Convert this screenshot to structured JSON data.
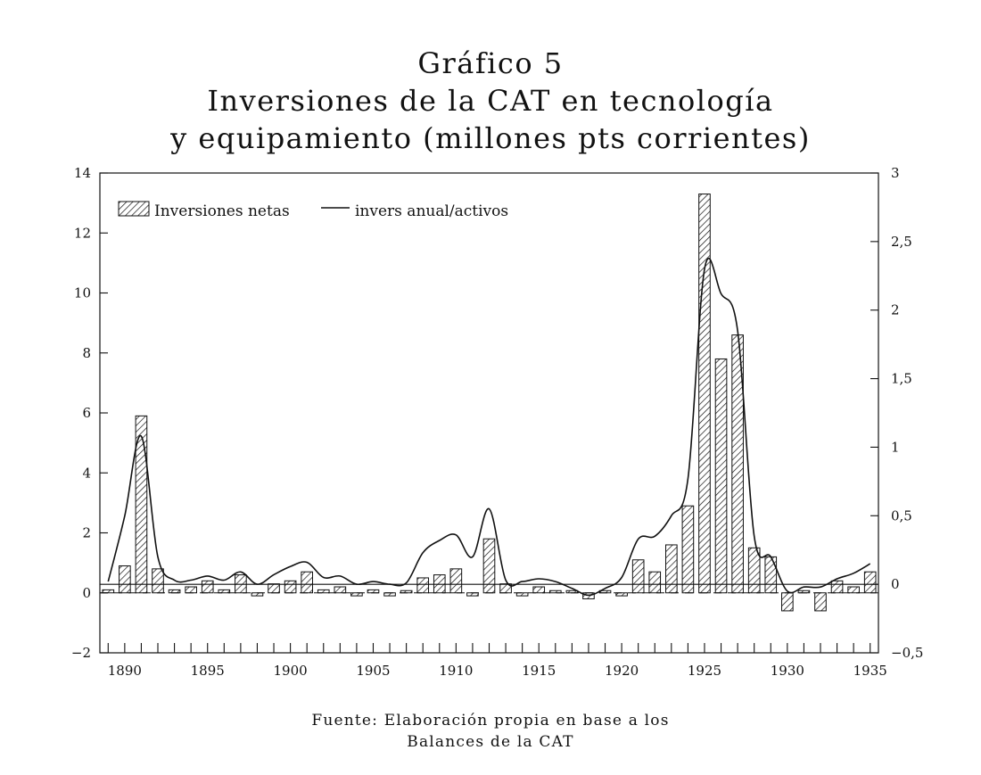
{
  "title_line1": "Gráfico 5",
  "title_line2": "Inversiones de la CAT en tecnología",
  "title_line3": "y equipamiento (millones pts corrientes)",
  "source_line1": "Fuente: Elaboración propia en base a los",
  "source_line2": "Balances de la CAT",
  "chart_data": {
    "type": "bar",
    "x": [
      1889,
      1890,
      1891,
      1892,
      1893,
      1894,
      1895,
      1896,
      1897,
      1898,
      1899,
      1900,
      1901,
      1902,
      1903,
      1904,
      1905,
      1906,
      1907,
      1908,
      1909,
      1910,
      1911,
      1912,
      1913,
      1914,
      1915,
      1916,
      1917,
      1918,
      1919,
      1920,
      1921,
      1922,
      1923,
      1924,
      1925,
      1926,
      1927,
      1928,
      1929,
      1930,
      1931,
      1932,
      1933,
      1934,
      1935
    ],
    "series": [
      {
        "name": "Inversiones netas",
        "axis": "left",
        "kind": "bar",
        "values": [
          0.1,
          0.9,
          5.9,
          0.8,
          0.1,
          0.2,
          0.4,
          0.1,
          0.6,
          -0.1,
          0.3,
          0.4,
          0.7,
          0.1,
          0.2,
          -0.1,
          0.1,
          -0.1,
          0,
          0.5,
          0.6,
          0.8,
          -0.1,
          1.8,
          0.3,
          -0.1,
          0.2,
          0,
          0,
          -0.2,
          0,
          -0.1,
          1.1,
          0.7,
          1.6,
          2.9,
          13.3,
          7.8,
          8.6,
          1.5,
          1.2,
          -0.6,
          0,
          -0.6,
          0.4,
          0.2,
          0.7
        ]
      },
      {
        "name": "invers anual/activos",
        "axis": "right",
        "kind": "line",
        "values": [
          0.02,
          0.5,
          1.08,
          0.2,
          0.03,
          0.03,
          0.06,
          0.03,
          0.09,
          0.0,
          0.07,
          0.13,
          0.16,
          0.05,
          0.06,
          0.0,
          0.02,
          0.0,
          0.01,
          0.23,
          0.32,
          0.36,
          0.2,
          0.55,
          0.03,
          0.02,
          0.04,
          0.02,
          -0.03,
          -0.08,
          -0.03,
          0.05,
          0.33,
          0.35,
          0.5,
          0.77,
          2.3,
          2.12,
          1.85,
          0.35,
          0.2,
          -0.05,
          -0.02,
          -0.02,
          0.04,
          0.08,
          0.15
        ]
      }
    ],
    "reference_line": {
      "axis": "right",
      "value": 0
    },
    "y_left": {
      "ylim": [
        -2,
        14
      ],
      "ticks": [
        -2,
        0,
        2,
        4,
        6,
        8,
        10,
        12,
        14
      ]
    },
    "y_right": {
      "ylim": [
        -0.5,
        3
      ],
      "ticks": [
        "-0,5",
        "0",
        "0,5",
        "1",
        "1,5",
        "2",
        "2,5",
        "3"
      ],
      "tick_values": [
        -0.5,
        0,
        0.5,
        1,
        1.5,
        2,
        2.5,
        3
      ]
    },
    "x_axis": {
      "xlim": [
        1888.5,
        1935.5
      ],
      "tick_labels": [
        "1890",
        "1895",
        "1900",
        "1905",
        "1910",
        "1915",
        "1920",
        "1925",
        "1930",
        "1935"
      ],
      "tick_values": [
        1890,
        1895,
        1900,
        1905,
        1910,
        1915,
        1920,
        1925,
        1930,
        1935
      ]
    },
    "legend_position": "top-left",
    "grid": false,
    "bar_pattern": "diagonal-hatch",
    "colors": {
      "ink": "#111111",
      "background": "#ffffff"
    }
  }
}
